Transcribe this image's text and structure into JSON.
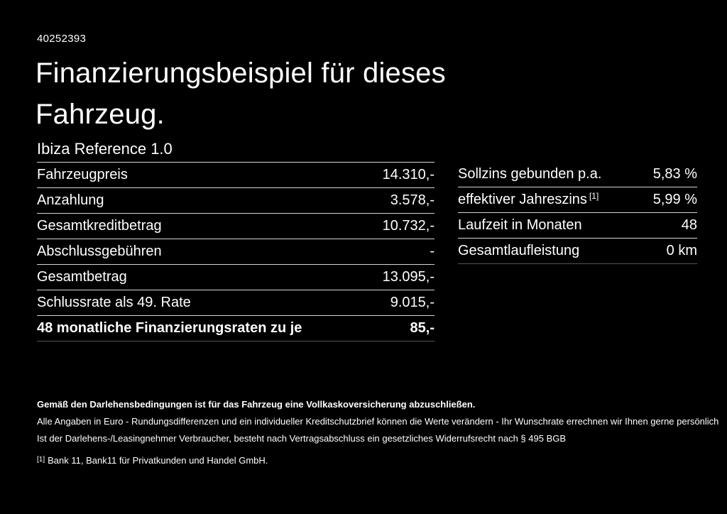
{
  "page": {
    "id_number": "40252393",
    "title_line1": "Finanzierungsbeispiel für dieses",
    "title_line2": "Fahrzeug.",
    "subtitle": "Ibiza Reference 1.0"
  },
  "finance_table": {
    "rows": [
      {
        "label": "Fahrzeugpreis",
        "value": "14.310,-",
        "bold": false
      },
      {
        "label": "Anzahlung",
        "value": "3.578,-",
        "bold": false
      },
      {
        "label": "Gesamtkreditbetrag",
        "value": "10.732,-",
        "bold": false
      },
      {
        "label": "Abschlussgebühren",
        "value": "-",
        "bold": false
      },
      {
        "label": "Gesamtbetrag",
        "value": "13.095,-",
        "bold": false
      },
      {
        "label": "Schlussrate als 49. Rate",
        "value": "9.015,-",
        "bold": false
      },
      {
        "label": "48 monatliche Finanzierungsraten zu je",
        "value": "85,-",
        "bold": true
      }
    ]
  },
  "conditions_table": {
    "rows": [
      {
        "label": "Sollzins gebunden p.a.",
        "sup": "",
        "value": "5,83 %"
      },
      {
        "label": "effektiver Jahreszins",
        "sup": "[1]",
        "value": "5,99 %"
      },
      {
        "label": "Laufzeit in Monaten",
        "sup": "",
        "value": "48"
      },
      {
        "label": "Gesamtlaufleistung",
        "sup": "",
        "value": "0 km"
      }
    ]
  },
  "footer": {
    "bold_note": "Gemäß den Darlehensbedingungen ist für das Fahrzeug eine Vollkaskoversicherung abzuschließen.",
    "note1": "Alle Angaben in Euro - Rundungsdifferenzen und ein individueller Kreditschutzbrief können die Werte verändern - Ihr Wunschrate errechnen wir Ihnen gerne persönlich",
    "note2": "Ist der Darlehens-/Leasingnehmer Verbraucher, besteht nach Vertragsabschluss ein gesetzliches Widerrufsrecht nach § 495 BGB",
    "footnote_marker": "[1]",
    "footnote_text": "Bank 11, Bank11 für Privatkunden und Handel GmbH."
  },
  "colors": {
    "background": "#000000",
    "text": "#ffffff",
    "divider": "#d6d6d6",
    "divider_end": "#555555"
  }
}
